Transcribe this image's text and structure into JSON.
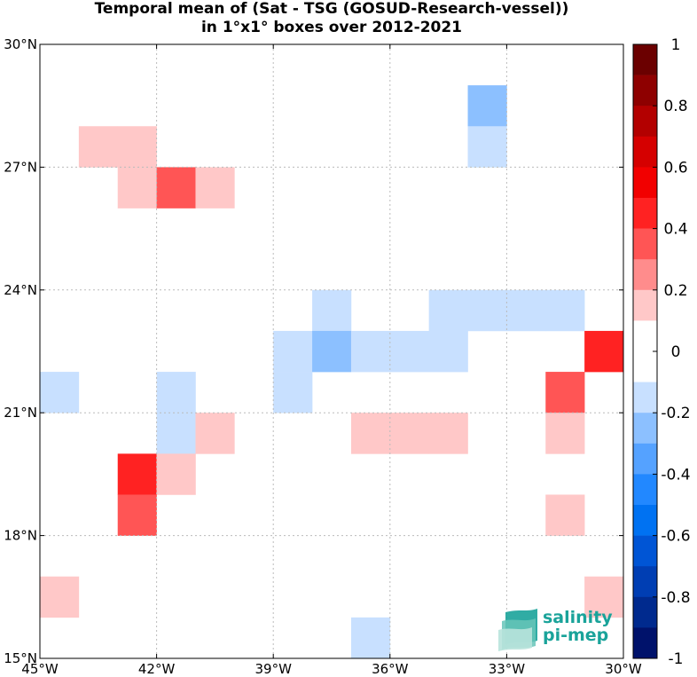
{
  "title": {
    "line1": "Temporal mean of (Sat - TSG (GOSUD-Research-vessel))",
    "line2": "in 1°x1° boxes over 2012-2021"
  },
  "map": {
    "x_ticks": [
      "45°W",
      "42°W",
      "39°W",
      "36°W",
      "33°W",
      "30°W"
    ],
    "y_ticks": [
      "30°N",
      "27°N",
      "24°N",
      "21°N",
      "18°N",
      "15°N"
    ],
    "lon_range": [
      -45,
      -30
    ],
    "lat_range": [
      15,
      30
    ],
    "grid": true,
    "cell_size_deg": 1
  },
  "colorbar": {
    "range": [
      -1,
      1
    ],
    "ticks": [
      "1",
      "0.8",
      "0.6",
      "0.4",
      "0.2",
      "0",
      "-0.2",
      "-0.4",
      "-0.6",
      "-0.8",
      "-1"
    ],
    "colors_top_to_bottom": [
      "#6b0000",
      "#8e0000",
      "#b30000",
      "#d50000",
      "#f20000",
      "#ff2222",
      "#ff5555",
      "#ff8c8c",
      "#ffc8c8",
      "#ffffff",
      "#ffffff",
      "#c8e0ff",
      "#8cc0ff",
      "#55a2ff",
      "#2288ff",
      "#0072f2",
      "#0055d5",
      "#003eb3",
      "#002a8e",
      "#00126b"
    ]
  },
  "chart_data": {
    "type": "heatmap",
    "title": "Temporal mean of (Sat - TSG (GOSUD-Research-vessel)) in 1°x1° boxes over 2012-2021",
    "xlabel": "",
    "ylabel": "",
    "x_range": [
      -45,
      -30
    ],
    "y_range": [
      15,
      30
    ],
    "value_range": [
      -1,
      1
    ],
    "cells": [
      {
        "lon": -34,
        "lat": 28,
        "value": -0.25
      },
      {
        "lon": -34,
        "lat": 27,
        "value": -0.12
      },
      {
        "lon": -44,
        "lat": 27,
        "value": 0.15
      },
      {
        "lon": -43,
        "lat": 27,
        "value": 0.15
      },
      {
        "lon": -43,
        "lat": 26,
        "value": 0.15
      },
      {
        "lon": -42,
        "lat": 26,
        "value": 0.35
      },
      {
        "lon": -41,
        "lat": 26,
        "value": 0.15
      },
      {
        "lon": -38,
        "lat": 23,
        "value": -0.12
      },
      {
        "lon": -35,
        "lat": 23,
        "value": -0.12
      },
      {
        "lon": -34,
        "lat": 23,
        "value": -0.12
      },
      {
        "lon": -33,
        "lat": 23,
        "value": -0.12
      },
      {
        "lon": -32,
        "lat": 23,
        "value": -0.12
      },
      {
        "lon": -39,
        "lat": 22,
        "value": -0.12
      },
      {
        "lon": -38,
        "lat": 22,
        "value": -0.25
      },
      {
        "lon": -37,
        "lat": 22,
        "value": -0.12
      },
      {
        "lon": -36,
        "lat": 22,
        "value": -0.12
      },
      {
        "lon": -35,
        "lat": 22,
        "value": -0.12
      },
      {
        "lon": -31,
        "lat": 22,
        "value": 0.45
      },
      {
        "lon": -45,
        "lat": 21,
        "value": -0.12
      },
      {
        "lon": -42,
        "lat": 21,
        "value": -0.12
      },
      {
        "lon": -39,
        "lat": 21,
        "value": -0.12
      },
      {
        "lon": -32,
        "lat": 21,
        "value": 0.35
      },
      {
        "lon": -42,
        "lat": 20,
        "value": -0.12
      },
      {
        "lon": -41,
        "lat": 20,
        "value": 0.15
      },
      {
        "lon": -37,
        "lat": 20,
        "value": 0.15
      },
      {
        "lon": -36,
        "lat": 20,
        "value": 0.15
      },
      {
        "lon": -35,
        "lat": 20,
        "value": 0.15
      },
      {
        "lon": -32,
        "lat": 20,
        "value": 0.15
      },
      {
        "lon": -43,
        "lat": 19,
        "value": 0.45
      },
      {
        "lon": -42,
        "lat": 19,
        "value": 0.15
      },
      {
        "lon": -43,
        "lat": 18,
        "value": 0.35
      },
      {
        "lon": -32,
        "lat": 18,
        "value": 0.15
      },
      {
        "lon": -45,
        "lat": 16,
        "value": 0.15
      },
      {
        "lon": -31,
        "lat": 16,
        "value": 0.15
      },
      {
        "lon": -37,
        "lat": 15,
        "value": -0.12
      }
    ]
  },
  "logo": {
    "line1": "salinity",
    "line2": "pi-mep"
  }
}
